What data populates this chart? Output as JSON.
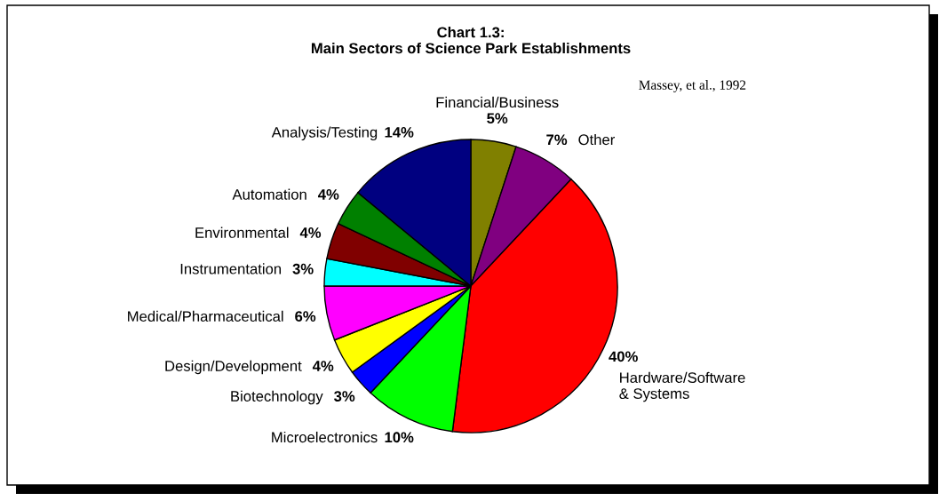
{
  "chart_data": {
    "type": "pie",
    "title": "Chart 1.3:\nMain Sectors of Science Park Establishments",
    "annotations": [
      "Massey, et al., 1992"
    ],
    "categories": [
      "Financial/Business",
      "Other",
      "Hardware/Software\n& Systems",
      "Microelectronics",
      "Biotechnology",
      "Design/Development",
      "Medical/Pharmaceutical",
      "Instrumentation",
      "Environmental",
      "Automation",
      "Analysis/Testing"
    ],
    "values": [
      5,
      7,
      40,
      10,
      3,
      4,
      6,
      3,
      4,
      4,
      14
    ],
    "value_labels": [
      "5%",
      "7%",
      "40%",
      "10%",
      "3%",
      "4%",
      "6%",
      "3%",
      "4%",
      "4%",
      "14%"
    ],
    "colors": [
      "#808000",
      "#800080",
      "#ff0000",
      "#00ff00",
      "#0000ff",
      "#ffff00",
      "#ff00ff",
      "#00ffff",
      "#800000",
      "#008000",
      "#000080"
    ]
  }
}
